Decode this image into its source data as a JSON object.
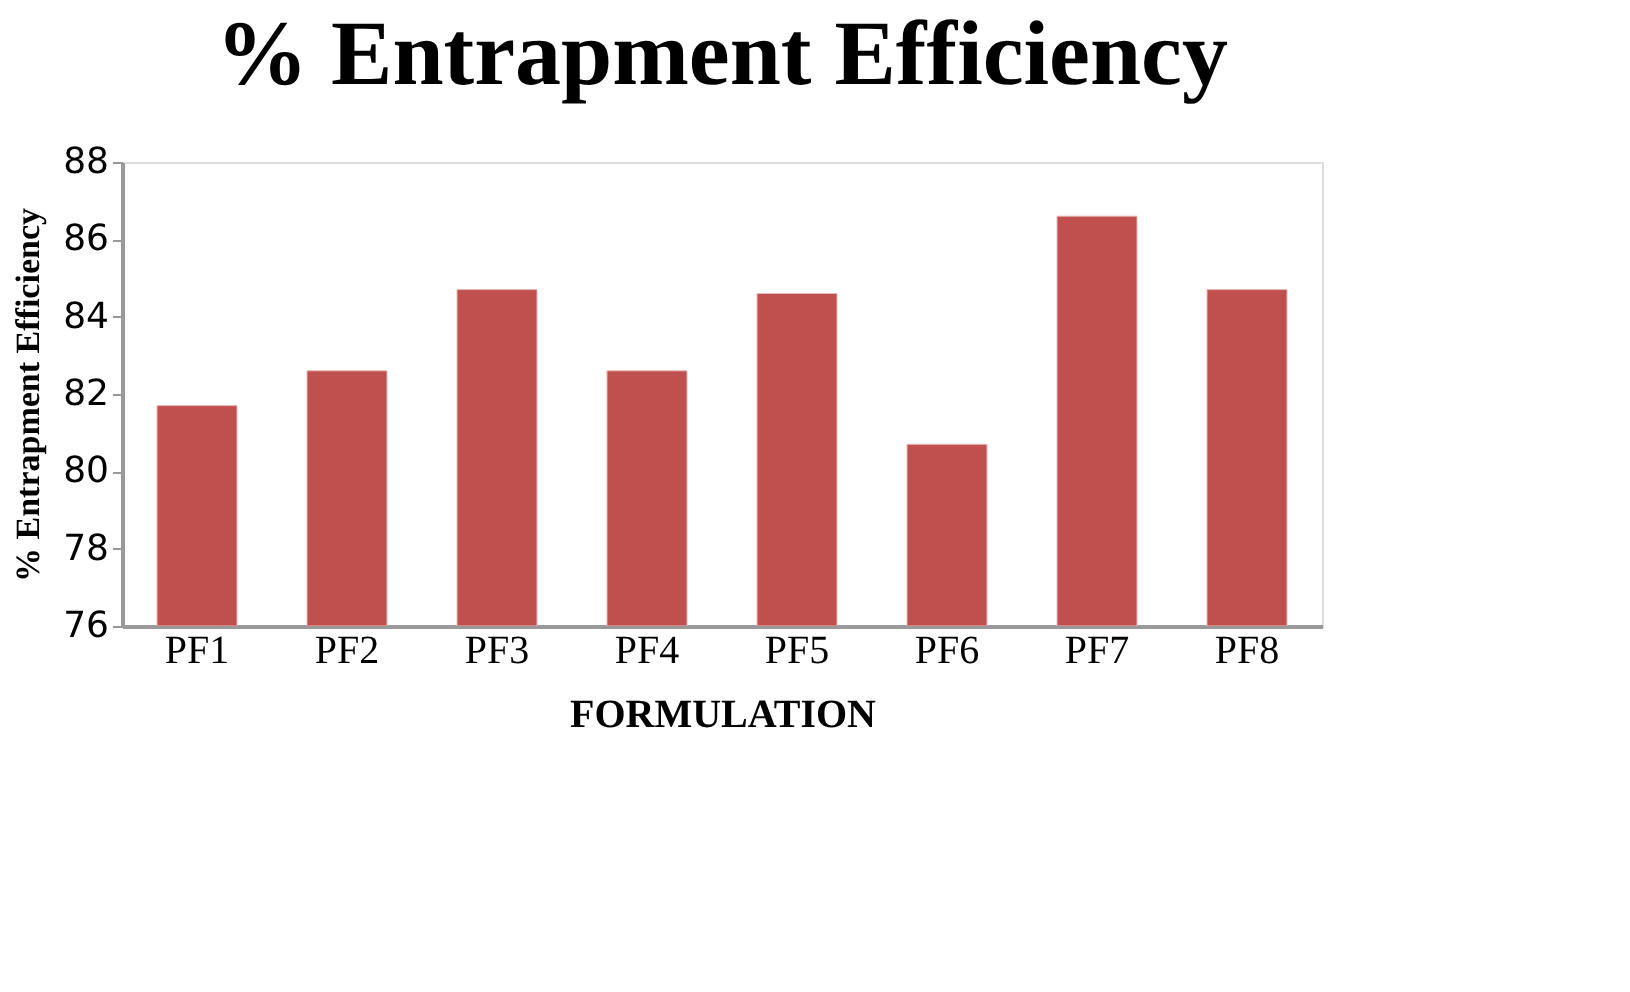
{
  "chart_data": {
    "type": "bar",
    "title": "% Entrapment Efficiency",
    "xlabel": "FORMULATION",
    "ylabel": "% Entrapment Efficiency",
    "categories": [
      "PF1",
      "PF2",
      "PF3",
      "PF4",
      "PF5",
      "PF6",
      "PF7",
      "PF8"
    ],
    "values": [
      81.7,
      82.6,
      84.7,
      82.6,
      84.6,
      80.7,
      86.6,
      84.7
    ],
    "color": "#c0504d",
    "ylim": [
      76,
      88
    ],
    "yticks": [
      76,
      78,
      80,
      82,
      84,
      86,
      88
    ],
    "grid": false
  }
}
